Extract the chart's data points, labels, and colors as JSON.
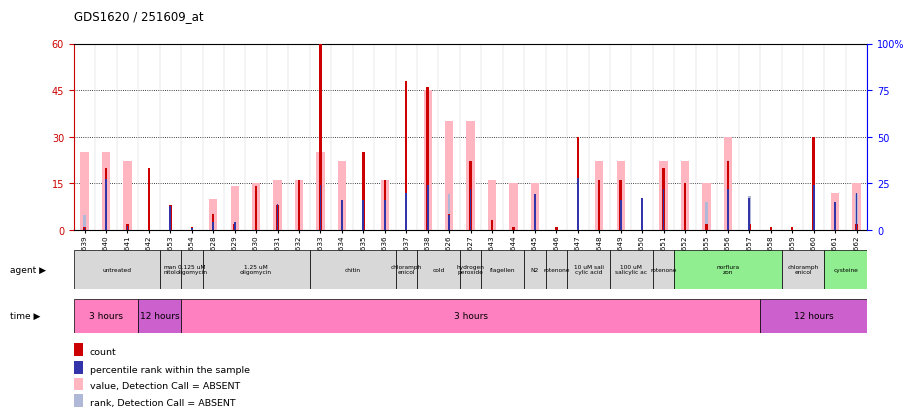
{
  "title": "GDS1620 / 251609_at",
  "samples": [
    "GSM85639",
    "GSM85640",
    "GSM85641",
    "GSM85642",
    "GSM85653",
    "GSM85654",
    "GSM85628",
    "GSM85629",
    "GSM85630",
    "GSM85631",
    "GSM85632",
    "GSM85633",
    "GSM85634",
    "GSM85635",
    "GSM85636",
    "GSM85637",
    "GSM85638",
    "GSM85626",
    "GSM85627",
    "GSM85643",
    "GSM85644",
    "GSM85645",
    "GSM85646",
    "GSM85647",
    "GSM85648",
    "GSM85649",
    "GSM85650",
    "GSM85651",
    "GSM85652",
    "GSM85655",
    "GSM85656",
    "GSM85657",
    "GSM85658",
    "GSM85659",
    "GSM85660",
    "GSM85661",
    "GSM85662"
  ],
  "count_values": [
    1,
    20,
    2,
    20,
    8,
    1,
    5,
    2,
    14,
    8,
    16,
    60,
    6,
    25,
    16,
    48,
    46,
    5,
    22,
    3,
    1,
    2,
    1,
    30,
    16,
    16,
    3,
    20,
    15,
    2,
    22,
    2,
    1,
    1,
    30,
    1,
    2
  ],
  "rank_values": [
    1,
    27,
    2,
    0,
    13,
    1,
    4,
    4,
    0,
    14,
    0,
    24,
    16,
    16,
    16,
    20,
    24,
    8,
    22,
    0,
    0,
    19,
    0,
    28,
    0,
    16,
    17,
    22,
    0,
    0,
    22,
    17,
    0,
    0,
    24,
    15,
    20
  ],
  "absent_value_bars": [
    25,
    25,
    22,
    0,
    0,
    0,
    10,
    14,
    15,
    16,
    16,
    25,
    22,
    0,
    16,
    0,
    45,
    35,
    35,
    16,
    15,
    15,
    0,
    0,
    22,
    22,
    0,
    22,
    22,
    15,
    30,
    0,
    0,
    0,
    0,
    12,
    15
  ],
  "absent_rank_bars": [
    8,
    22,
    0,
    13,
    0,
    0,
    0,
    0,
    0,
    0,
    0,
    0,
    0,
    16,
    0,
    19,
    0,
    19,
    19,
    0,
    0,
    18,
    0,
    28,
    0,
    16,
    0,
    0,
    0,
    15,
    22,
    18,
    0,
    0,
    0,
    0,
    19
  ],
  "ylim_left": [
    0,
    60
  ],
  "ylim_right": [
    0,
    100
  ],
  "yticks_left": [
    0,
    15,
    30,
    45,
    60
  ],
  "yticks_right": [
    0,
    25,
    50,
    75,
    100
  ],
  "count_color": "#cc0000",
  "rank_color": "#3333aa",
  "absent_value_color": "#ffb6c1",
  "absent_rank_color": "#b0b8d8",
  "agent_segments": [
    {
      "label": "untreated",
      "s": 0,
      "e": 3,
      "color": "#d8d8d8"
    },
    {
      "label": "man\nnitol",
      "s": 4,
      "e": 4,
      "color": "#d8d8d8"
    },
    {
      "label": "0.125 uM\noligomycin",
      "s": 5,
      "e": 5,
      "color": "#d8d8d8"
    },
    {
      "label": "1.25 uM\noligomycin",
      "s": 6,
      "e": 10,
      "color": "#d8d8d8"
    },
    {
      "label": "chitin",
      "s": 11,
      "e": 14,
      "color": "#d8d8d8"
    },
    {
      "label": "chloramph\nenicol",
      "s": 15,
      "e": 15,
      "color": "#d8d8d8"
    },
    {
      "label": "cold",
      "s": 16,
      "e": 17,
      "color": "#d8d8d8"
    },
    {
      "label": "hydrogen\nperoxide",
      "s": 18,
      "e": 18,
      "color": "#d8d8d8"
    },
    {
      "label": "flagellen",
      "s": 19,
      "e": 20,
      "color": "#d8d8d8"
    },
    {
      "label": "N2",
      "s": 21,
      "e": 21,
      "color": "#d8d8d8"
    },
    {
      "label": "rotenone",
      "s": 22,
      "e": 22,
      "color": "#d8d8d8"
    },
    {
      "label": "10 uM sali\ncylic acid",
      "s": 23,
      "e": 24,
      "color": "#d8d8d8"
    },
    {
      "label": "100 uM\nsalicylic ac",
      "s": 25,
      "e": 26,
      "color": "#d8d8d8"
    },
    {
      "label": "rotenone",
      "s": 27,
      "e": 27,
      "color": "#d8d8d8"
    },
    {
      "label": "norflura\nzon",
      "s": 28,
      "e": 32,
      "color": "#90ee90"
    },
    {
      "label": "chloramph\nenicol",
      "s": 33,
      "e": 34,
      "color": "#d8d8d8"
    },
    {
      "label": "cysteine",
      "s": 35,
      "e": 36,
      "color": "#90ee90"
    }
  ],
  "time_segments": [
    {
      "label": "3 hours",
      "s": 0,
      "e": 2,
      "color": "#ff80c0"
    },
    {
      "label": "12 hours",
      "s": 3,
      "e": 4,
      "color": "#cc60cc"
    },
    {
      "label": "3 hours",
      "s": 5,
      "e": 31,
      "color": "#ff80c0"
    },
    {
      "label": "12 hours",
      "s": 32,
      "e": 36,
      "color": "#cc60cc"
    }
  ],
  "legend_items": [
    {
      "color": "#cc0000",
      "label": "count"
    },
    {
      "color": "#3333aa",
      "label": "percentile rank within the sample"
    },
    {
      "color": "#ffb6c1",
      "label": "value, Detection Call = ABSENT"
    },
    {
      "color": "#b0b8d8",
      "label": "rank, Detection Call = ABSENT"
    }
  ]
}
